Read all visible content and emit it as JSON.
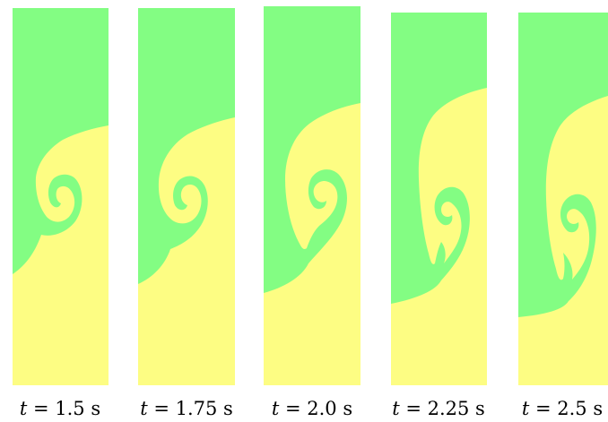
{
  "colors": {
    "upper_fluid": "#83fd83",
    "lower_fluid": "#fdfd83",
    "background": "#ffffff",
    "label_text": "#000000"
  },
  "panels": [
    {
      "label_var": "t",
      "label_eq": " = 1.5 s"
    },
    {
      "label_var": "t",
      "label_eq": " = 1.75 s"
    },
    {
      "label_var": "t",
      "label_eq": " = 2.0 s"
    },
    {
      "label_var": "t",
      "label_eq": " = 2.25 s"
    },
    {
      "label_var": "t",
      "label_eq": " = 2.5 s"
    }
  ]
}
